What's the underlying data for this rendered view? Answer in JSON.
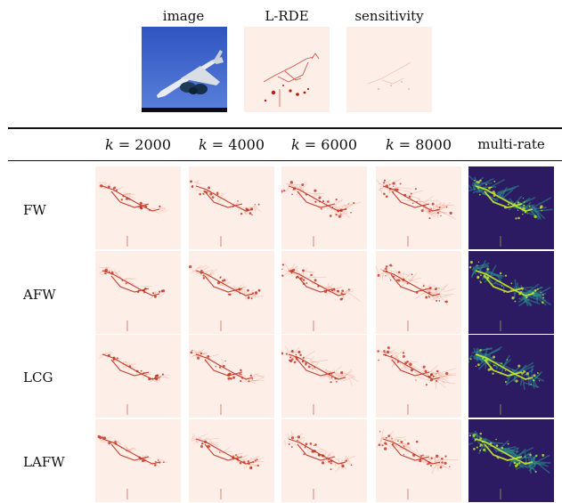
{
  "top_labels": [
    "image",
    "L-RDE",
    "sensitivity"
  ],
  "columns": [
    {
      "var": "k",
      "eq": " = ",
      "value": "2000"
    },
    {
      "var": "k",
      "eq": " = ",
      "value": "4000"
    },
    {
      "var": "k",
      "eq": " = ",
      "value": "6000"
    },
    {
      "var": "k",
      "eq": " = ",
      "value": "8000"
    }
  ],
  "last_column": "multi-rate",
  "rows": [
    "FW",
    "AFW",
    "LCG",
    "LAFW"
  ],
  "colors": {
    "heat_bg": "#fdeee8",
    "heat_mark": "#c0301e",
    "heat_light": "#f39a84",
    "multi_bg": "#2c1a63",
    "multi_mark": "#c4e82a",
    "multi_mid": "#2a8e8a",
    "sky": "#3d62c8"
  }
}
